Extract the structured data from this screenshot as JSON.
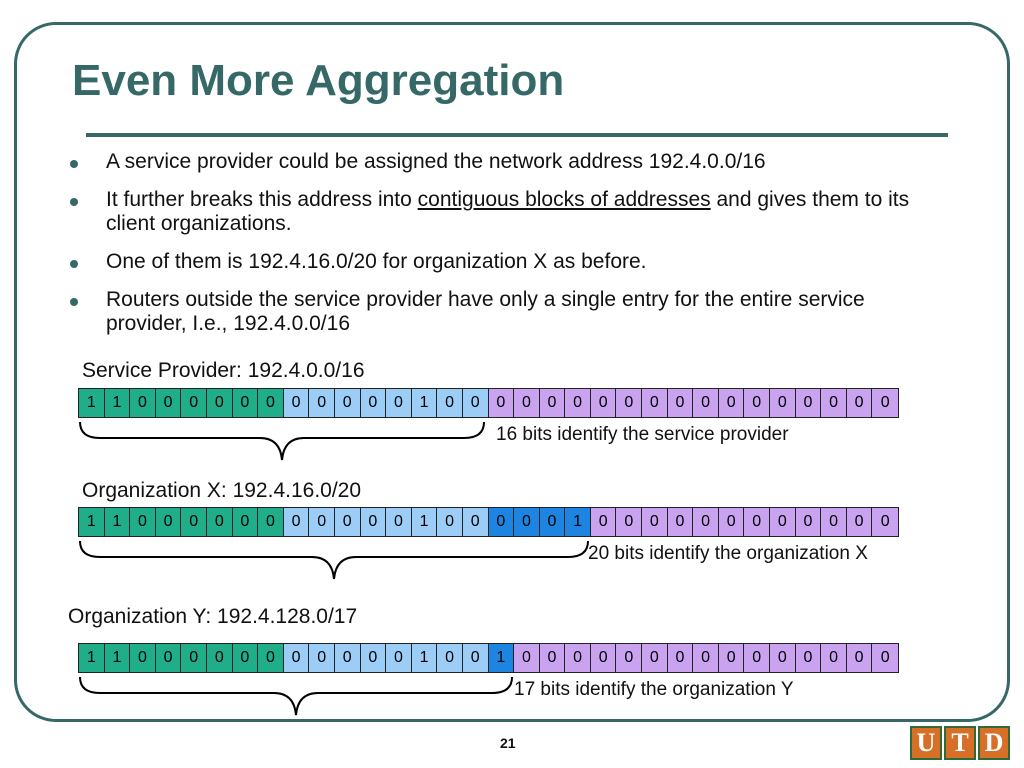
{
  "slide": {
    "title": "Even More Aggregation",
    "bullets": [
      {
        "text": "A service provider could be assigned the network address 192.4.0.0/16"
      },
      {
        "pre": "It further breaks this address into ",
        "underlined": "contiguous blocks of addresses",
        "post": " and gives them to its client organizations."
      },
      {
        "text": "One of them is 192.4.16.0/20 for organization X as before."
      },
      {
        "text": "Routers outside the service provider have only a single entry for the entire service provider, I.e., 192.4.0.0/16"
      }
    ],
    "page_number": "21",
    "logo_letters": [
      "U",
      "T",
      "D"
    ]
  },
  "rows": [
    {
      "label": "Service Provider: 192.4.0.0/16",
      "bits": "11000000000001000000000000000000",
      "colors": "11111111222222223333333333333333",
      "note": "16 bits identify the service provider"
    },
    {
      "label": "Organization X: 192.4.16.0/20",
      "bits": "11000000000001000001000000000000",
      "colors": "11111111222222224444333333333333",
      "note": "20 bits identify the organization X"
    },
    {
      "label": "Organization Y: 192.4.128.0/17",
      "bits": "11000000000001001000000000000000",
      "colors": "11111111222222224333333333333333",
      "note": "17 bits identify the organization Y"
    }
  ]
}
